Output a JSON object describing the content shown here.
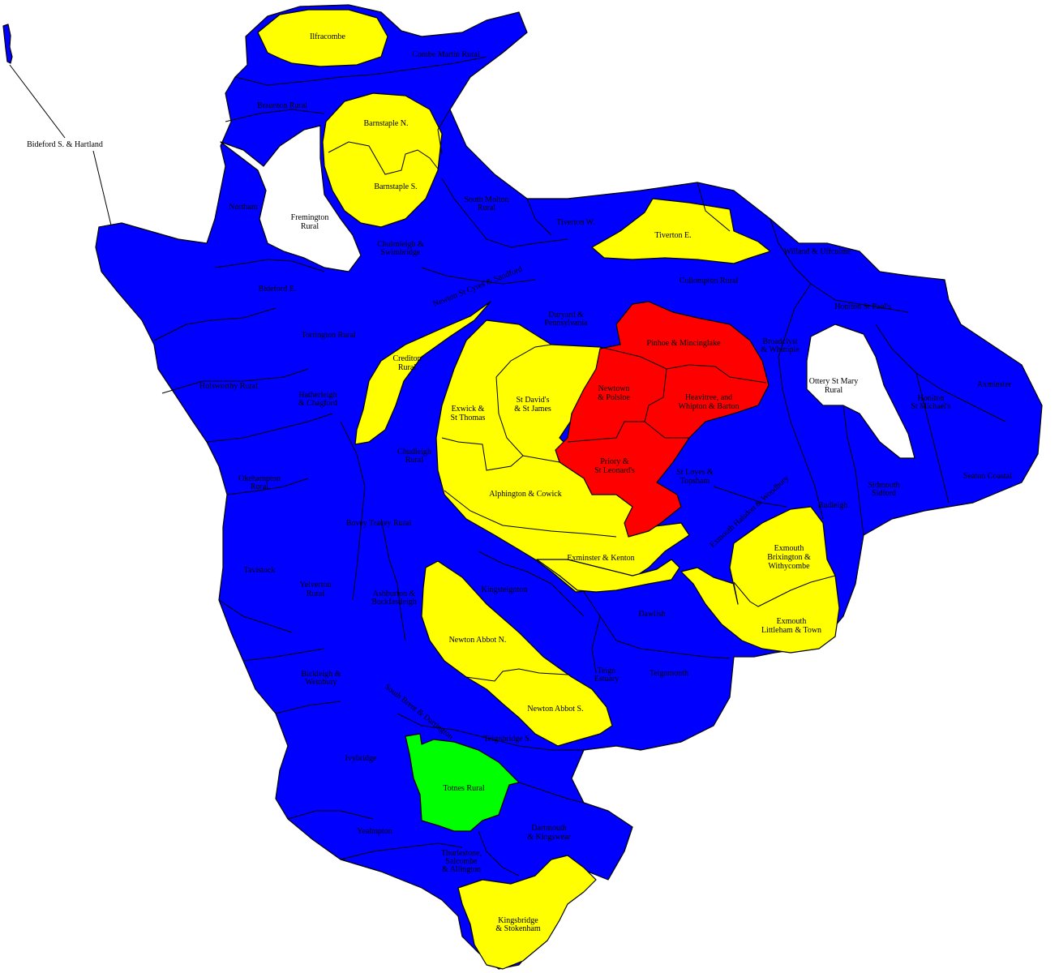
{
  "colors": {
    "blue": "#0000ff",
    "yellow": "#ffff00",
    "red": "#ff0000",
    "green": "#00ff00",
    "white": "#ffffff"
  },
  "labels": {
    "bideford_s_hartland": "Bideford S. & Hartland",
    "ilfracombe": "Ilfracombe",
    "combe_martin_rural": "Combe Martin Rural",
    "braunton_rural": "Braunton Rural",
    "barnstaple_n": "Barnstaple N.",
    "barnstaple_s": "Barnstaple S.",
    "fremington_rural_1": "Fremington",
    "fremington_rural_2": "Rural",
    "northam": "Northam",
    "bideford_e": "Bideford E.",
    "south_molton_rural_1": "South Molton",
    "south_molton_rural_2": "Rural",
    "chulmleigh_1": "Chulmleigh &",
    "chulmleigh_2": "Swimbridge",
    "tiverton_w": "Tiverton W.",
    "tiverton_e": "Tiverton E.",
    "willand": "Willand & Uffculme",
    "newton_st_cyres": "Newton St Cyres & Sandford",
    "cullompton_rural": "Cullompton Rural",
    "torrington_rural": "Torrington Rural",
    "crediton_rural_1": "Crediton",
    "crediton_rural_2": "Rural",
    "duryard_1": "Duryard &",
    "duryard_2": "Pennsylvania",
    "pinhoe": "Pinhoe & Mincinglake",
    "broadclyst_1": "Broadclyst",
    "broadclyst_2": "& Whimple",
    "honiton_st_pauls": "Honiton St Paul's",
    "ottery_1": "Ottery St Mary",
    "ottery_2": "Rural",
    "axminster": "Axminster",
    "honiton_st_michaels_1": "Honiton",
    "honiton_st_michaels_2": "St Michael's",
    "holsworthy_rural": "Holsworthy Rural",
    "hatherleigh_1": "Hatherleigh",
    "hatherleigh_2": "& Chagford",
    "exwick_1": "Exwick &",
    "exwick_2": "St Thomas",
    "st_davids_1": "St David's",
    "st_davids_2": "& St James",
    "newtown_1": "Newtown",
    "newtown_2": "& Polsloe",
    "heavitree_1": "Heavitree, and",
    "heavitree_2": "Whipton & Barton",
    "priory_1": "Priory &",
    "priory_2": "St Leonard's",
    "st_loyes_1": "St Loyes &",
    "st_loyes_2": "Topsham",
    "chudleigh_1": "Chudleigh",
    "chudleigh_2": "Rural",
    "alphington": "Alphington & Cowick",
    "sidmouth_1": "Sidmouth",
    "sidmouth_2": "Sidford",
    "seaton_coastal": "Seaton Coastal",
    "budleigh": "Budleigh",
    "exmouth_halsdon": "Exmouth Halsdon & Woodbury",
    "okehampton_1": "Okehampton",
    "okehampton_2": "Rural",
    "bovey_tracey_rural": "Bovey Tracey Rural",
    "exminster": "Exminster & Kenton",
    "exmouth_brix_1": "Exmouth",
    "exmouth_brix_2": "Brixington &",
    "exmouth_brix_3": "Withycombe",
    "tavistock": "Tavistock",
    "yelverton_1": "Yelverton",
    "yelverton_2": "Rural",
    "ashburton_1": "Ashburton &",
    "ashburton_2": "Buckfastleigh",
    "kingsteignton": "Kingsteignton",
    "dawlish": "Dawlish",
    "exmouth_littleham_1": "Exmouth",
    "exmouth_littleham_2": "Littleham & Town",
    "newton_abbot_n": "Newton Abbot N.",
    "teign_estuary_1": "Teign",
    "teign_estuary_2": "Estuary",
    "teignmouth": "Teignmouth",
    "bickleigh_1": "Bickleigh &",
    "bickleigh_2": "Wembury",
    "south_brent": "South Brent & Dartington",
    "newton_abbot_s": "Newton Abbot S.",
    "teignbridge_s": "Teignbridge S.",
    "ivybridge": "Ivybridge",
    "totnes_rural": "Totnes Rural",
    "dartmouth_1": "Dartmouth",
    "dartmouth_2": "& Kingswear",
    "yealmpton": "Yealmpton",
    "thurlestone_1": "Thurlestone,",
    "thurlestone_2": "Salcombe",
    "thurlestone_3": "& Allington",
    "kingsbridge_1": "Kingsbridge",
    "kingsbridge_2": "& Stokenham"
  }
}
